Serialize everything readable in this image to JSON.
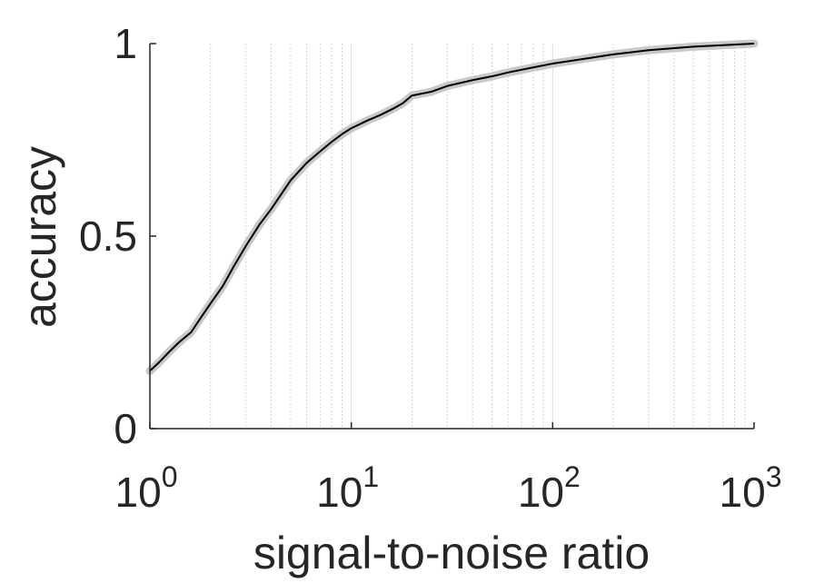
{
  "chart_data": {
    "type": "line",
    "xscale": "log",
    "xlabel": "signal-to-noise ratio",
    "ylabel": "accuracy",
    "xlim": [
      1,
      1000
    ],
    "ylim": [
      0,
      1
    ],
    "xticks": [
      {
        "value": 1,
        "base": "10",
        "exp": "0"
      },
      {
        "value": 10,
        "base": "10",
        "exp": "1"
      },
      {
        "value": 100,
        "base": "10",
        "exp": "2"
      },
      {
        "value": 1000,
        "base": "10",
        "exp": "3"
      }
    ],
    "yticks": [
      {
        "value": 0,
        "label": "0"
      },
      {
        "value": 0.5,
        "label": "0.5"
      },
      {
        "value": 1,
        "label": "1"
      }
    ],
    "grid": "vertical (major and minor, x only)",
    "series": [
      {
        "line_color": "#000000",
        "band_color": "#c8c8c8",
        "x": [
          1,
          1.1,
          1.25,
          1.4,
          1.6,
          1.8,
          2,
          2.3,
          2.6,
          3,
          3.5,
          4,
          5,
          6,
          7,
          8,
          9,
          10,
          12,
          14,
          16,
          18,
          20,
          25,
          30,
          40,
          50,
          60,
          70,
          80,
          100,
          150,
          200,
          300,
          500,
          700,
          1000
        ],
        "y": [
          0.15,
          0.17,
          0.2,
          0.225,
          0.25,
          0.29,
          0.325,
          0.37,
          0.42,
          0.475,
          0.53,
          0.57,
          0.645,
          0.69,
          0.72,
          0.745,
          0.765,
          0.78,
          0.8,
          0.815,
          0.83,
          0.845,
          0.865,
          0.875,
          0.89,
          0.905,
          0.915,
          0.925,
          0.932,
          0.938,
          0.948,
          0.962,
          0.972,
          0.983,
          0.992,
          0.996,
          1.0
        ]
      }
    ]
  }
}
